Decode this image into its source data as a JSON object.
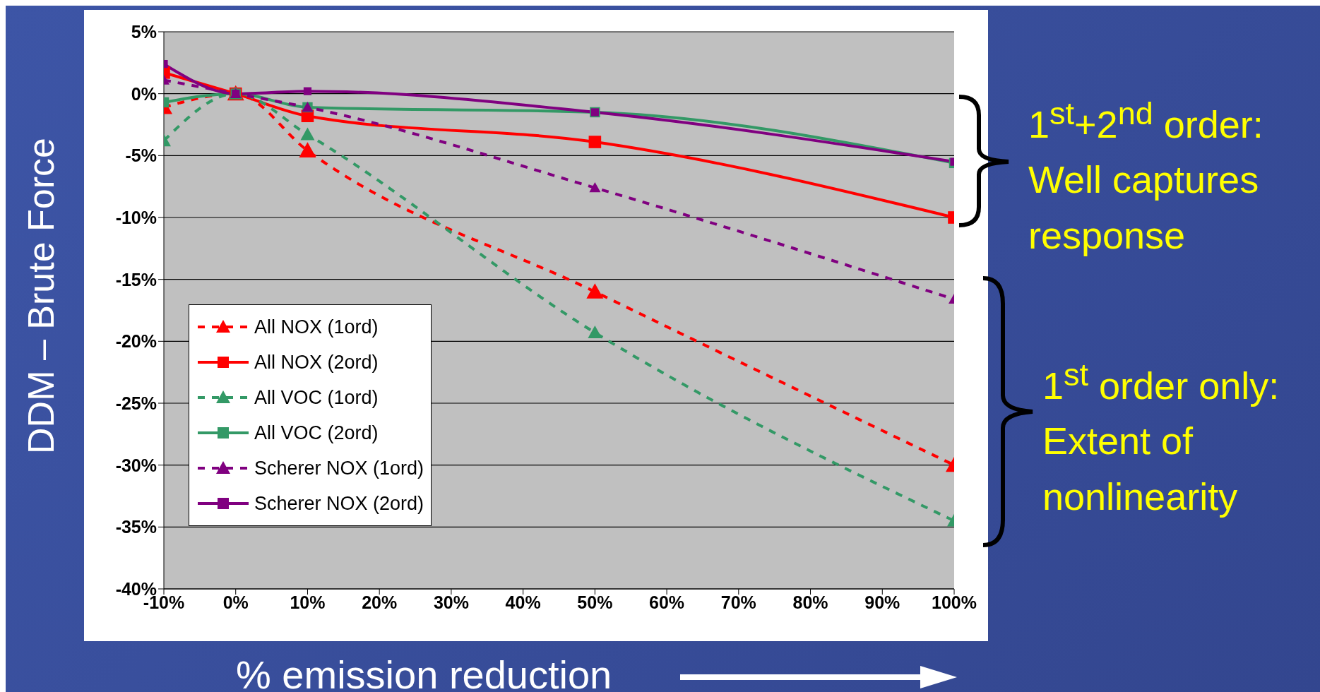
{
  "chart_data": {
    "type": "line",
    "ylabel": "DDM – Brute Force",
    "xlabel": "% emission reduction",
    "x": [
      -10,
      0,
      10,
      50,
      100
    ],
    "xlim": [
      -10,
      100
    ],
    "xticks": [
      {
        "value": -10,
        "label": "-10%"
      },
      {
        "value": 0,
        "label": "0%"
      },
      {
        "value": 10,
        "label": "10%"
      },
      {
        "value": 20,
        "label": "20%"
      },
      {
        "value": 30,
        "label": "30%"
      },
      {
        "value": 40,
        "label": "40%"
      },
      {
        "value": 50,
        "label": "50%"
      },
      {
        "value": 60,
        "label": "60%"
      },
      {
        "value": 70,
        "label": "70%"
      },
      {
        "value": 80,
        "label": "80%"
      },
      {
        "value": 90,
        "label": "90%"
      },
      {
        "value": 100,
        "label": "100%"
      }
    ],
    "ylim": [
      -40,
      5
    ],
    "yticks": [
      {
        "value": -40,
        "label": "-40%"
      },
      {
        "value": -35,
        "label": "-35%"
      },
      {
        "value": -30,
        "label": "-30%"
      },
      {
        "value": -25,
        "label": "-25%"
      },
      {
        "value": -20,
        "label": "-20%"
      },
      {
        "value": -15,
        "label": "-15%"
      },
      {
        "value": -10,
        "label": "-10%"
      },
      {
        "value": -5,
        "label": "-5%"
      },
      {
        "value": 0,
        "label": "0%"
      },
      {
        "value": 5,
        "label": "5%"
      }
    ],
    "grid": "y",
    "legend": "left",
    "series": [
      {
        "name": "All NOX (1ord)",
        "color": "#ff0000",
        "line_style": "dashed",
        "marker": "triangle",
        "values": [
          -1.1,
          0,
          -4.6,
          -16,
          -30
        ]
      },
      {
        "name": "All NOX (2ord)",
        "color": "#ff0000",
        "line_style": "solid",
        "marker": "square",
        "values": [
          1.7,
          0,
          -1.8,
          -3.9,
          -10
        ]
      },
      {
        "name": "All VOC (1ord)",
        "color": "#339966",
        "line_style": "dashed",
        "marker": "triangle",
        "values": [
          -3.8,
          0,
          -3.3,
          -19.3,
          -34.5
        ]
      },
      {
        "name": "All VOC (2ord)",
        "color": "#339966",
        "line_style": "solid",
        "marker": "square",
        "values": [
          -0.7,
          0,
          -1.1,
          -1.5,
          -5.6
        ]
      },
      {
        "name": "Scherer NOX (1ord)",
        "color": "#800080",
        "line_style": "dashed",
        "marker": "triangle",
        "values": [
          1.1,
          0,
          -1.1,
          -7.6,
          -16.6
        ]
      },
      {
        "name": "Scherer NOX (2ord)",
        "color": "#800080",
        "line_style": "solid",
        "marker": "square",
        "values": [
          2.4,
          0,
          0.2,
          -1.5,
          -5.5
        ]
      }
    ],
    "annotations": [
      "1$^{st}$+2$^{nd}$ order: Well captures response",
      "1$^{st}$ order only: Extent of nonlinearity"
    ]
  }
}
